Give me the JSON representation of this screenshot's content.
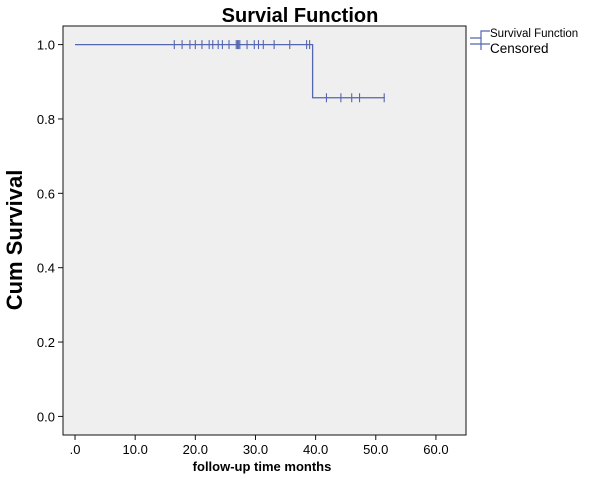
{
  "chart_data": {
    "type": "line",
    "title": "Survial Function",
    "xlabel": "follow-up time months",
    "ylabel": "Cum Survival",
    "xlim": [
      -2,
      65
    ],
    "ylim": [
      -0.05,
      1.05
    ],
    "x_ticks": [
      0,
      10,
      20,
      30,
      40,
      50,
      60
    ],
    "x_tick_labels": [
      ".0",
      "10.0",
      "20.0",
      "30.0",
      "40.0",
      "50.0",
      "60.0"
    ],
    "y_ticks": [
      0.0,
      0.2,
      0.4,
      0.6,
      0.8,
      1.0
    ],
    "y_tick_labels": [
      "0.0",
      "0.2",
      "0.4",
      "0.6",
      "0.8",
      "1.0"
    ],
    "grid": false,
    "legend_position": "top-right",
    "background": "#efefef",
    "line_color": "#5566b0",
    "series": [
      {
        "name": "Survival Function",
        "kind": "step",
        "x": [
          0,
          39.5,
          51.5
        ],
        "y": [
          1.0,
          0.857,
          0.857
        ]
      },
      {
        "name": "Censored",
        "kind": "censor-marks",
        "points": [
          {
            "x": 16.5,
            "y": 1.0
          },
          {
            "x": 17.8,
            "y": 1.0
          },
          {
            "x": 19.1,
            "y": 1.0
          },
          {
            "x": 20.0,
            "y": 1.0
          },
          {
            "x": 21.1,
            "y": 1.0
          },
          {
            "x": 22.3,
            "y": 1.0
          },
          {
            "x": 22.9,
            "y": 1.0
          },
          {
            "x": 23.8,
            "y": 1.0
          },
          {
            "x": 24.5,
            "y": 1.0
          },
          {
            "x": 25.6,
            "y": 1.0
          },
          {
            "x": 26.8,
            "y": 1.0
          },
          {
            "x": 27.0,
            "y": 1.0
          },
          {
            "x": 27.2,
            "y": 1.0
          },
          {
            "x": 27.4,
            "y": 1.0
          },
          {
            "x": 28.6,
            "y": 1.0
          },
          {
            "x": 29.8,
            "y": 1.0
          },
          {
            "x": 30.5,
            "y": 1.0
          },
          {
            "x": 31.3,
            "y": 1.0
          },
          {
            "x": 33.1,
            "y": 1.0
          },
          {
            "x": 35.7,
            "y": 1.0
          },
          {
            "x": 38.5,
            "y": 1.0
          },
          {
            "x": 39.0,
            "y": 1.0
          },
          {
            "x": 41.8,
            "y": 0.857
          },
          {
            "x": 44.2,
            "y": 0.857
          },
          {
            "x": 46.0,
            "y": 0.857
          },
          {
            "x": 47.3,
            "y": 0.857
          },
          {
            "x": 51.4,
            "y": 0.857
          }
        ]
      }
    ]
  }
}
